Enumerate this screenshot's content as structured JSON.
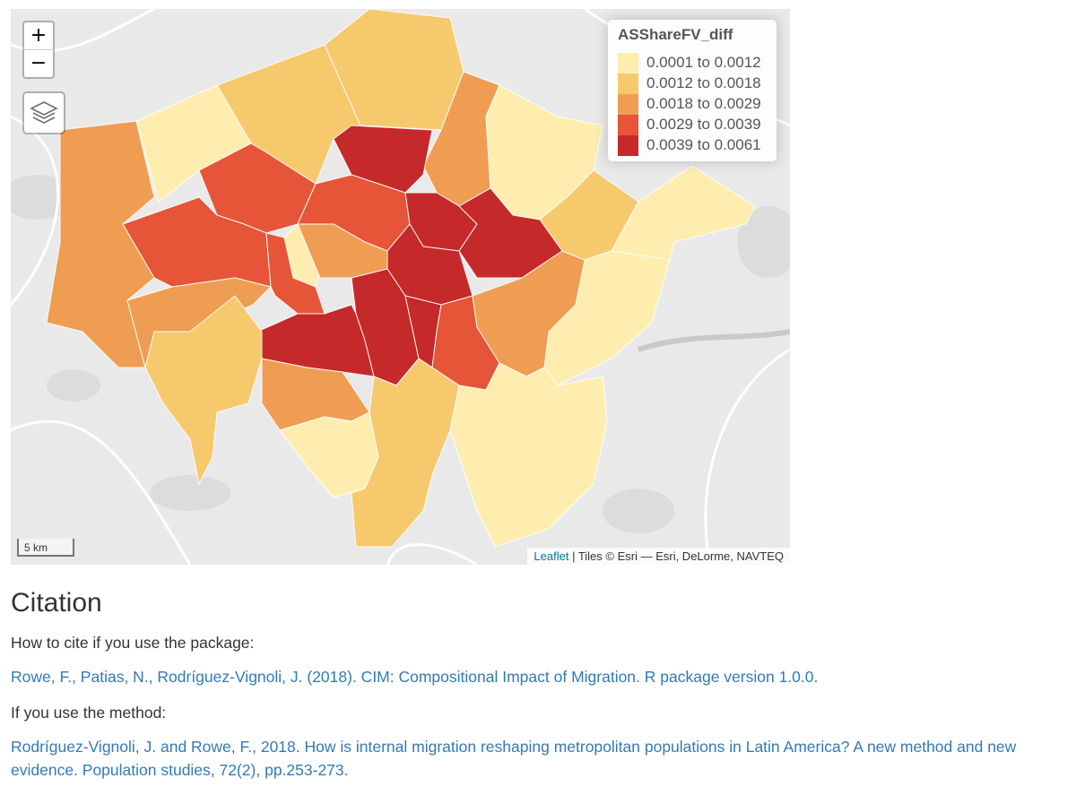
{
  "map": {
    "zoom_in": "+",
    "zoom_out": "−",
    "layers_icon": "layers-icon",
    "legend": {
      "title": "ASShareFV_diff",
      "classes": [
        {
          "label": "0.0001 to 0.0012",
          "color": "#feedae"
        },
        {
          "label": "0.0012 to 0.0018",
          "color": "#f7c96d"
        },
        {
          "label": "0.0018 to 0.0029",
          "color": "#ef9d53"
        },
        {
          "label": "0.0029 to 0.0039",
          "color": "#e65537"
        },
        {
          "label": "0.0039 to 0.0061",
          "color": "#c5292a"
        }
      ]
    },
    "scale_label": "5 km",
    "attribution": {
      "leaflet": "Leaflet",
      "rest": " | Tiles © Esri — Esri, DeLorme, NAVTEQ"
    }
  },
  "citation": {
    "heading": "Citation",
    "package_intro": "How to cite if you use the package:",
    "package_ref": "Rowe, F., Patias, N., Rodríguez-Vignoli, J. (2018). CIM: Compositional Impact of Migration. R package version 1.0.0.",
    "method_intro": "If you use the method:",
    "method_ref_line1": "Rodríguez-Vignoli, J. and Rowe, F., 2018. How is internal migration reshaping metropolitan populations in Latin America? A new method and new",
    "method_ref_line2": "evidence. Population studies, 72(2), pp.253-273."
  }
}
